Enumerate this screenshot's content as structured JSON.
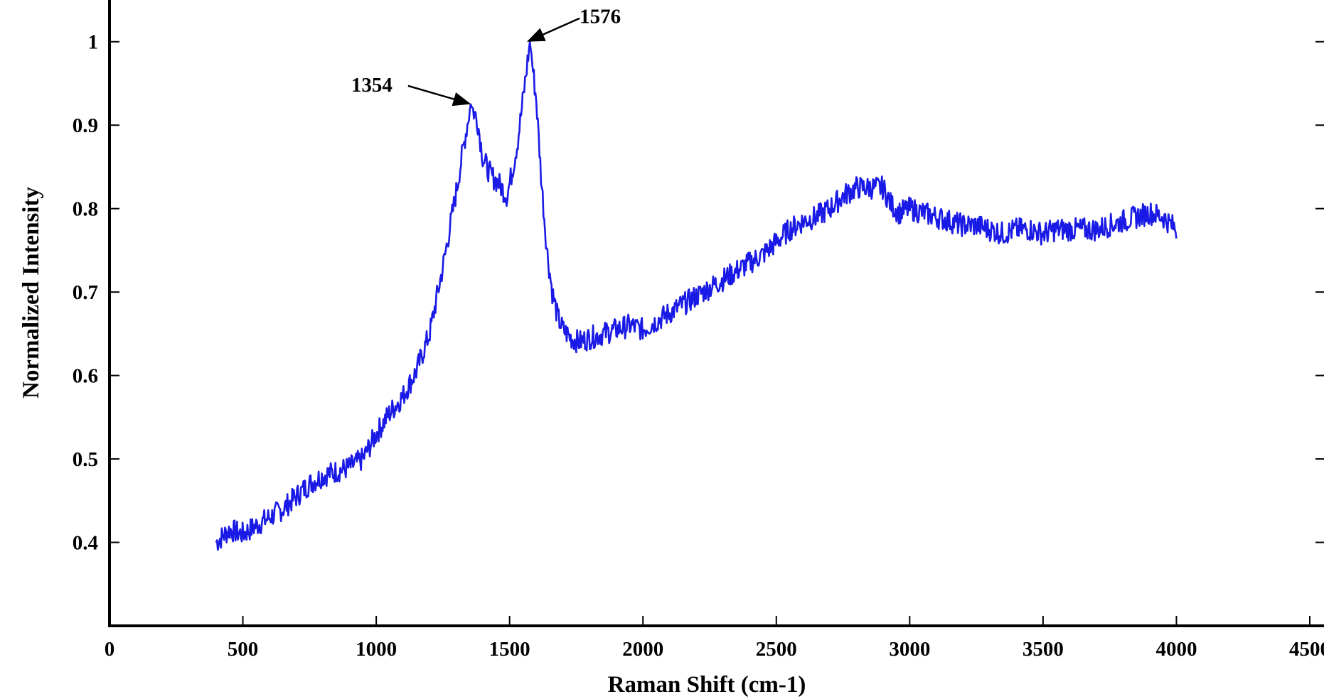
{
  "chart_data": {
    "type": "line",
    "title": "",
    "xlabel": "Raman Shift (cm-1)",
    "ylabel": "Normalized Intensity",
    "xlim": [
      0,
      4500
    ],
    "ylim": [
      0.3,
      1.05
    ],
    "grid": false,
    "legend": "none",
    "x_ticks": [
      0,
      500,
      1000,
      1500,
      2000,
      2500,
      3000,
      3500,
      4000,
      4500
    ],
    "x_tick_labels": [
      "0",
      "500",
      "1000",
      "1500",
      "2000",
      "2500",
      "3000",
      "3500",
      "4000",
      "4500"
    ],
    "y_ticks": [
      0.4,
      0.5,
      0.6,
      0.7,
      0.8,
      0.9,
      1.0
    ],
    "y_tick_labels": [
      "0.4",
      "0.5",
      "0.6",
      "0.7",
      "0.8",
      "0.9",
      "1"
    ],
    "series": [
      {
        "color": "#1a1ae6",
        "x": [
          400,
          450,
          500,
          550,
          600,
          650,
          700,
          750,
          800,
          850,
          900,
          950,
          1000,
          1050,
          1100,
          1150,
          1200,
          1250,
          1300,
          1320,
          1354,
          1380,
          1400,
          1430,
          1460,
          1490,
          1510,
          1530,
          1550,
          1576,
          1600,
          1620,
          1640,
          1660,
          1680,
          1700,
          1730,
          1760,
          1800,
          1850,
          1900,
          1950,
          2000,
          2050,
          2100,
          2150,
          2200,
          2250,
          2300,
          2350,
          2400,
          2450,
          2500,
          2550,
          2600,
          2650,
          2700,
          2750,
          2800,
          2850,
          2900,
          2930,
          2960,
          3000,
          3050,
          3100,
          3150,
          3200,
          3250,
          3300,
          3350,
          3400,
          3450,
          3500,
          3550,
          3600,
          3650,
          3700,
          3750,
          3800,
          3850,
          3900,
          3950,
          4000
        ],
        "y": [
          0.4,
          0.415,
          0.41,
          0.42,
          0.43,
          0.44,
          0.455,
          0.47,
          0.48,
          0.485,
          0.49,
          0.5,
          0.53,
          0.555,
          0.575,
          0.605,
          0.65,
          0.73,
          0.82,
          0.86,
          0.925,
          0.905,
          0.86,
          0.84,
          0.83,
          0.815,
          0.845,
          0.88,
          0.93,
          1.0,
          0.93,
          0.83,
          0.75,
          0.7,
          0.67,
          0.655,
          0.645,
          0.64,
          0.645,
          0.65,
          0.655,
          0.66,
          0.655,
          0.665,
          0.675,
          0.685,
          0.695,
          0.705,
          0.715,
          0.725,
          0.735,
          0.745,
          0.76,
          0.775,
          0.785,
          0.79,
          0.8,
          0.815,
          0.825,
          0.825,
          0.825,
          0.805,
          0.795,
          0.8,
          0.795,
          0.79,
          0.785,
          0.78,
          0.78,
          0.775,
          0.77,
          0.775,
          0.775,
          0.77,
          0.775,
          0.775,
          0.775,
          0.775,
          0.78,
          0.785,
          0.79,
          0.795,
          0.79,
          0.775
        ]
      }
    ],
    "annotations": [
      {
        "text": "1354",
        "x": 1354,
        "y": 0.925
      },
      {
        "text": "1576",
        "x": 1576,
        "y": 1.0
      }
    ]
  }
}
